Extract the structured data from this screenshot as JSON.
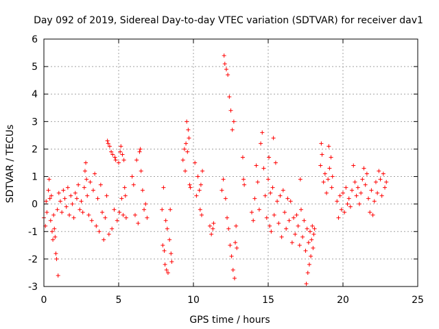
{
  "chart_data": {
    "type": "scatter",
    "title": "Day 092 of 2019, Sidereal Day-to-day VTEC variation (SDTVAR) for receiver dav1",
    "xlabel": "GPS time / hours",
    "ylabel": "SDTVAR / TECUs",
    "xlim": [
      0,
      25
    ],
    "ylim": [
      -3,
      6
    ],
    "xticks": [
      "0",
      "5",
      "10",
      "15",
      "20",
      "25"
    ],
    "yticks": [
      "-3",
      "-2",
      "-1",
      "0",
      "1",
      "2",
      "3",
      "4",
      "5",
      "6"
    ],
    "grid": true,
    "marker": "+",
    "color": "#ff0000",
    "series": [
      {
        "name": "dav1",
        "points": [
          [
            0.0,
            -0.5
          ],
          [
            0.1,
            -0.8
          ],
          [
            0.15,
            0.1
          ],
          [
            0.2,
            -0.3
          ],
          [
            0.3,
            0.5
          ],
          [
            0.35,
            0.9
          ],
          [
            0.4,
            0.2
          ],
          [
            0.45,
            -0.6
          ],
          [
            0.5,
            0.3
          ],
          [
            0.55,
            -1.0
          ],
          [
            0.6,
            -1.3
          ],
          [
            0.65,
            -0.4
          ],
          [
            0.7,
            -0.9
          ],
          [
            0.75,
            -1.2
          ],
          [
            0.8,
            -1.8
          ],
          [
            0.85,
            -2.0
          ],
          [
            0.9,
            -0.2
          ],
          [
            0.95,
            -2.6
          ],
          [
            1.0,
            0.4
          ],
          [
            1.1,
            0.1
          ],
          [
            1.2,
            -0.3
          ],
          [
            1.3,
            0.5
          ],
          [
            1.4,
            0.2
          ],
          [
            1.5,
            -0.1
          ],
          [
            1.6,
            0.6
          ],
          [
            1.7,
            -0.4
          ],
          [
            1.8,
            0.3
          ],
          [
            1.9,
            0.0
          ],
          [
            2.0,
            -0.5
          ],
          [
            2.1,
            0.4
          ],
          [
            2.2,
            0.2
          ],
          [
            2.3,
            0.7
          ],
          [
            2.4,
            -0.2
          ],
          [
            2.5,
            0.1
          ],
          [
            2.6,
            -0.3
          ],
          [
            2.7,
            0.6
          ],
          [
            2.75,
            1.2
          ],
          [
            2.8,
            1.5
          ],
          [
            2.85,
            0.9
          ],
          [
            2.9,
            0.3
          ],
          [
            3.0,
            -0.4
          ],
          [
            3.1,
            0.8
          ],
          [
            3.2,
            -0.6
          ],
          [
            3.3,
            0.5
          ],
          [
            3.4,
            1.1
          ],
          [
            3.5,
            -0.8
          ],
          [
            3.6,
            0.2
          ],
          [
            3.7,
            -1.0
          ],
          [
            3.8,
            0.7
          ],
          [
            3.9,
            -0.3
          ],
          [
            4.0,
            -1.3
          ],
          [
            4.1,
            -0.5
          ],
          [
            4.2,
            0.3
          ],
          [
            4.25,
            2.3
          ],
          [
            4.3,
            2.2
          ],
          [
            4.35,
            -1.1
          ],
          [
            4.4,
            2.1
          ],
          [
            4.5,
            1.9
          ],
          [
            4.55,
            -0.9
          ],
          [
            4.6,
            1.8
          ],
          [
            4.7,
            -0.2
          ],
          [
            4.75,
            1.7
          ],
          [
            4.8,
            1.6
          ],
          [
            4.9,
            -0.6
          ],
          [
            5.0,
            1.5
          ],
          [
            5.05,
            -0.3
          ],
          [
            5.1,
            1.9
          ],
          [
            5.15,
            2.1
          ],
          [
            5.2,
            0.2
          ],
          [
            5.25,
            1.8
          ],
          [
            5.3,
            -0.4
          ],
          [
            5.35,
            1.6
          ],
          [
            5.4,
            0.6
          ],
          [
            5.45,
            0.3
          ],
          [
            5.5,
            -0.5
          ],
          [
            5.9,
            1.0
          ],
          [
            6.0,
            0.7
          ],
          [
            6.1,
            -0.4
          ],
          [
            6.2,
            1.6
          ],
          [
            6.3,
            -0.7
          ],
          [
            6.4,
            1.9
          ],
          [
            6.45,
            2.0
          ],
          [
            6.5,
            1.2
          ],
          [
            6.6,
            0.5
          ],
          [
            6.7,
            -0.2
          ],
          [
            6.8,
            0.0
          ],
          [
            6.9,
            -0.5
          ],
          [
            7.9,
            -0.2
          ],
          [
            7.95,
            -1.5
          ],
          [
            8.0,
            0.6
          ],
          [
            8.05,
            -1.7
          ],
          [
            8.1,
            -2.2
          ],
          [
            8.15,
            -0.6
          ],
          [
            8.2,
            -2.4
          ],
          [
            8.25,
            -0.9
          ],
          [
            8.3,
            -2.5
          ],
          [
            8.4,
            -1.3
          ],
          [
            8.45,
            -0.2
          ],
          [
            8.5,
            -1.8
          ],
          [
            8.55,
            -2.1
          ],
          [
            9.3,
            1.6
          ],
          [
            9.4,
            2.0
          ],
          [
            9.45,
            1.2
          ],
          [
            9.5,
            2.2
          ],
          [
            9.55,
            3.0
          ],
          [
            9.6,
            1.9
          ],
          [
            9.65,
            2.7
          ],
          [
            9.7,
            2.4
          ],
          [
            9.75,
            0.7
          ],
          [
            9.8,
            0.6
          ],
          [
            10.1,
            1.5
          ],
          [
            10.2,
            0.3
          ],
          [
            10.3,
            1.0
          ],
          [
            10.4,
            0.5
          ],
          [
            10.45,
            -0.2
          ],
          [
            10.5,
            0.7
          ],
          [
            10.55,
            -0.4
          ],
          [
            10.6,
            1.2
          ],
          [
            11.1,
            -0.8
          ],
          [
            11.2,
            -1.1
          ],
          [
            11.3,
            -0.9
          ],
          [
            11.35,
            -0.7
          ],
          [
            11.9,
            0.5
          ],
          [
            12.0,
            0.9
          ],
          [
            12.05,
            5.4
          ],
          [
            12.1,
            5.1
          ],
          [
            12.15,
            0.2
          ],
          [
            12.2,
            4.9
          ],
          [
            12.25,
            -0.5
          ],
          [
            12.3,
            4.7
          ],
          [
            12.35,
            -0.9
          ],
          [
            12.4,
            3.9
          ],
          [
            12.45,
            -1.5
          ],
          [
            12.5,
            3.4
          ],
          [
            12.55,
            -1.9
          ],
          [
            12.6,
            2.7
          ],
          [
            12.65,
            -2.4
          ],
          [
            12.7,
            3.0
          ],
          [
            12.75,
            -2.7
          ],
          [
            12.8,
            -1.4
          ],
          [
            12.85,
            -0.8
          ],
          [
            12.9,
            -1.6
          ],
          [
            13.3,
            1.7
          ],
          [
            13.35,
            0.9
          ],
          [
            13.4,
            0.7
          ],
          [
            13.9,
            -0.3
          ],
          [
            14.0,
            -0.6
          ],
          [
            14.1,
            0.2
          ],
          [
            14.2,
            1.4
          ],
          [
            14.3,
            0.8
          ],
          [
            14.4,
            -0.2
          ],
          [
            14.5,
            2.2
          ],
          [
            14.6,
            2.6
          ],
          [
            14.7,
            1.3
          ],
          [
            14.8,
            0.3
          ],
          [
            14.9,
            -0.5
          ],
          [
            15.0,
            0.9
          ],
          [
            15.05,
            1.7
          ],
          [
            15.1,
            -0.8
          ],
          [
            15.15,
            0.4
          ],
          [
            15.2,
            -1.0
          ],
          [
            15.3,
            0.6
          ],
          [
            15.35,
            2.4
          ],
          [
            15.4,
            -0.4
          ],
          [
            15.5,
            1.5
          ],
          [
            15.6,
            0.1
          ],
          [
            15.7,
            -0.7
          ],
          [
            15.8,
            0.3
          ],
          [
            15.9,
            -1.2
          ],
          [
            16.0,
            0.5
          ],
          [
            16.1,
            -0.3
          ],
          [
            16.2,
            -0.9
          ],
          [
            16.3,
            0.2
          ],
          [
            16.4,
            -0.6
          ],
          [
            16.5,
            0.1
          ],
          [
            16.6,
            -1.4
          ],
          [
            16.7,
            -0.5
          ],
          [
            16.8,
            -1.1
          ],
          [
            16.9,
            -0.4
          ],
          [
            17.0,
            -0.8
          ],
          [
            17.1,
            -1.5
          ],
          [
            17.15,
            0.9
          ],
          [
            17.2,
            -0.2
          ],
          [
            17.3,
            -1.2
          ],
          [
            17.4,
            -0.6
          ],
          [
            17.5,
            -1.7
          ],
          [
            17.55,
            -2.9
          ],
          [
            17.6,
            -0.9
          ],
          [
            17.65,
            -2.5
          ],
          [
            17.7,
            -1.4
          ],
          [
            17.75,
            -2.2
          ],
          [
            17.8,
            -1.0
          ],
          [
            17.85,
            -1.9
          ],
          [
            17.9,
            -1.3
          ],
          [
            17.95,
            -0.8
          ],
          [
            18.0,
            -1.6
          ],
          [
            18.05,
            -1.1
          ],
          [
            18.1,
            -0.9
          ],
          [
            18.5,
            1.4
          ],
          [
            18.55,
            2.2
          ],
          [
            18.6,
            1.8
          ],
          [
            18.7,
            0.8
          ],
          [
            18.8,
            1.1
          ],
          [
            18.9,
            0.4
          ],
          [
            19.0,
            0.9
          ],
          [
            19.05,
            2.1
          ],
          [
            19.1,
            1.3
          ],
          [
            19.2,
            1.7
          ],
          [
            19.25,
            0.6
          ],
          [
            19.3,
            1.0
          ],
          [
            19.6,
            0.1
          ],
          [
            19.7,
            -0.5
          ],
          [
            19.8,
            0.3
          ],
          [
            19.9,
            -0.2
          ],
          [
            20.0,
            0.4
          ],
          [
            20.1,
            -0.3
          ],
          [
            20.2,
            0.6
          ],
          [
            20.3,
            0.0
          ],
          [
            20.4,
            0.2
          ],
          [
            20.5,
            -0.1
          ],
          [
            20.6,
            0.5
          ],
          [
            20.7,
            1.4
          ],
          [
            20.8,
            0.8
          ],
          [
            20.9,
            0.3
          ],
          [
            21.0,
            0.6
          ],
          [
            21.1,
            0.0
          ],
          [
            21.2,
            0.4
          ],
          [
            21.3,
            0.9
          ],
          [
            21.4,
            1.3
          ],
          [
            21.5,
            0.7
          ],
          [
            21.6,
            1.1
          ],
          [
            21.7,
            0.2
          ],
          [
            21.8,
            -0.3
          ],
          [
            21.9,
            0.5
          ],
          [
            22.0,
            -0.4
          ],
          [
            22.1,
            0.1
          ],
          [
            22.2,
            0.8
          ],
          [
            22.3,
            0.4
          ],
          [
            22.4,
            1.2
          ],
          [
            22.5,
            0.9
          ],
          [
            22.6,
            0.3
          ],
          [
            22.7,
            1.1
          ],
          [
            22.8,
            0.6
          ],
          [
            22.9,
            0.8
          ]
        ]
      }
    ]
  }
}
